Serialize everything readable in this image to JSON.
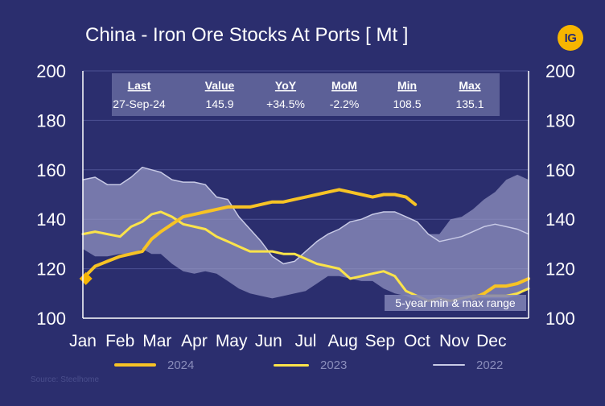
{
  "title": "China - Iron Ore Stocks At Ports [ Mt ]",
  "logo_text": "IG",
  "source": "Source: Steelhome",
  "stats": {
    "headers": [
      "Last",
      "Value",
      "YoY",
      "MoM",
      "Min",
      "Max"
    ],
    "values": [
      "27-Sep-24",
      "145.9",
      "+34.5%",
      "-2.2%",
      "108.5",
      "135.1"
    ]
  },
  "range_label": "5-year min & max range",
  "legend": [
    {
      "label": "2024",
      "color": "#f7c325"
    },
    {
      "label": "2023",
      "color": "#fbe34a"
    },
    {
      "label": "2022",
      "color": "#c8cae6"
    }
  ],
  "chart_data": {
    "type": "line",
    "title": "China - Iron Ore Stocks At Ports [ Mt ]",
    "xlabel": "",
    "ylabel": "",
    "x_ticks": [
      "Jan",
      "Feb",
      "Mar",
      "Apr",
      "May",
      "Jun",
      "Jul",
      "Aug",
      "Sep",
      "Oct",
      "Nov",
      "Dec"
    ],
    "x_range": [
      0,
      12
    ],
    "ylim": [
      100,
      200
    ],
    "y_ticks": [
      100,
      120,
      140,
      160,
      180,
      200
    ],
    "grid": true,
    "colors": {
      "c2024": "#f7c325",
      "c2023": "#fbe34a",
      "c2022": "#c8cae6",
      "band": "#9799c4",
      "marker": "#f7b500"
    },
    "band": {
      "name": "5-year min & max range",
      "x": [
        0,
        0.33,
        0.66,
        1.0,
        1.3,
        1.6,
        1.85,
        2.1,
        2.4,
        2.7,
        3.0,
        3.3,
        3.6,
        3.9,
        4.2,
        4.5,
        4.8,
        5.1,
        5.4,
        5.7,
        6.0,
        6.3,
        6.6,
        6.9,
        7.2,
        7.5,
        7.8,
        8.1,
        8.4,
        8.7,
        9.0,
        9.3,
        9.6,
        9.9,
        10.2,
        10.5,
        10.8,
        11.1,
        11.4,
        11.7,
        12.0
      ],
      "upper": [
        156,
        157,
        154,
        154,
        157,
        161,
        160,
        159,
        156,
        155,
        155,
        154,
        149,
        148,
        141,
        136,
        131,
        125,
        122,
        123,
        127,
        131,
        134,
        136,
        139,
        140,
        142,
        143,
        143,
        141,
        139,
        134,
        134,
        140,
        141,
        144,
        148,
        151,
        156,
        158,
        156
      ],
      "lower": [
        128,
        125,
        125,
        126,
        126,
        128,
        126,
        126,
        122,
        119,
        118,
        119,
        118,
        115,
        112,
        110,
        109,
        108,
        109,
        110,
        111,
        114,
        117,
        117,
        116,
        115,
        115,
        112,
        110,
        109,
        107,
        107,
        105,
        105,
        106,
        108,
        108,
        108,
        108,
        109,
        112
      ]
    },
    "series": [
      {
        "name": "2022",
        "x": [
          0,
          0.33,
          0.66,
          1.0,
          1.3,
          1.6,
          1.85,
          2.1,
          2.4,
          2.7,
          3.0,
          3.3,
          3.6,
          3.9,
          4.2,
          4.5,
          4.8,
          5.1,
          5.4,
          5.7,
          6.0,
          6.3,
          6.6,
          6.9,
          7.2,
          7.5,
          7.8,
          8.1,
          8.4,
          8.7,
          9.0,
          9.3,
          9.6,
          9.9,
          10.2,
          10.5,
          10.8,
          11.1,
          11.4,
          11.7,
          12.0
        ],
        "values": [
          156,
          157,
          154,
          154,
          157,
          161,
          160,
          159,
          156,
          155,
          155,
          154,
          149,
          148,
          141,
          136,
          131,
          125,
          122,
          123,
          127,
          131,
          134,
          136,
          139,
          140,
          142,
          143,
          143,
          141,
          139,
          134,
          131,
          132,
          133,
          135,
          137,
          138,
          137,
          136,
          134
        ]
      },
      {
        "name": "2023",
        "x": [
          0,
          0.33,
          0.66,
          1.0,
          1.3,
          1.6,
          1.85,
          2.1,
          2.4,
          2.7,
          3.0,
          3.3,
          3.6,
          3.9,
          4.2,
          4.5,
          4.8,
          5.1,
          5.4,
          5.7,
          6.0,
          6.3,
          6.6,
          6.9,
          7.2,
          7.5,
          7.8,
          8.1,
          8.4,
          8.7,
          9.0,
          9.3,
          9.6,
          9.9,
          10.2,
          10.5,
          10.8,
          11.1,
          11.4,
          11.7,
          12.0
        ],
        "values": [
          134,
          135,
          134,
          133,
          137,
          139,
          142,
          143,
          141,
          138,
          137,
          136,
          133,
          131,
          129,
          127,
          127,
          127,
          126,
          126,
          124,
          122,
          121,
          120,
          116,
          117,
          118,
          119,
          117,
          111,
          109,
          107,
          108,
          107,
          108,
          109,
          109,
          109,
          109,
          110,
          112
        ]
      },
      {
        "name": "2024",
        "x": [
          0,
          0.33,
          0.66,
          1.0,
          1.3,
          1.6,
          1.85,
          2.1,
          2.4,
          2.7,
          3.0,
          3.3,
          3.6,
          3.9,
          4.2,
          4.5,
          4.8,
          5.1,
          5.4,
          5.7,
          6.0,
          6.3,
          6.6,
          6.9,
          7.2,
          7.5,
          7.8,
          8.1,
          8.4,
          8.7,
          8.95
        ],
        "values": [
          116,
          121,
          123,
          125,
          126,
          127,
          132,
          135,
          138,
          141,
          142,
          143,
          144,
          145,
          145,
          145,
          146,
          147,
          147,
          148,
          149,
          150,
          151,
          152,
          151,
          150,
          149,
          150,
          150,
          149,
          146
        ]
      }
    ],
    "extra_line": {
      "name": "",
      "color": "#f7c325",
      "x": [
        10.5,
        10.8,
        11.1,
        11.4,
        11.7,
        12.0
      ],
      "values": [
        108,
        110,
        113,
        113,
        114,
        116
      ]
    },
    "marker": {
      "x": 0.08,
      "y": 116
    }
  }
}
